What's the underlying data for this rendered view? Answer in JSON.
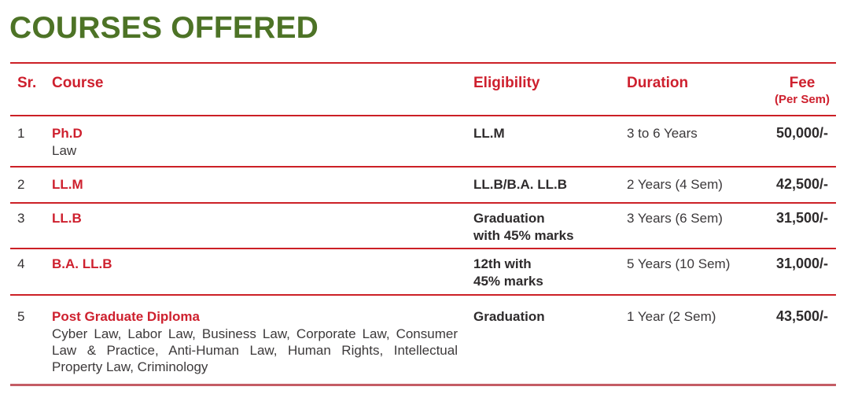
{
  "page": {
    "title": "COURSES OFFERED"
  },
  "colors": {
    "title_green": "#4d7326",
    "accent_red": "#ce202e",
    "rule_red": "#cc2026",
    "rule_bottom_rose": "#c45d65",
    "text_dark_bold": "#2e2b2c",
    "text_body": "#3c393a"
  },
  "table": {
    "headers": {
      "sr": "Sr.",
      "course": "Course",
      "eligibility": "Eligibility",
      "duration": "Duration",
      "fee": "Fee",
      "fee_sub": "(Per Sem)"
    },
    "rows": [
      {
        "sr": "1",
        "course": "Ph.D",
        "course_sub": "Law",
        "eligibility": "LL.M",
        "duration": "3 to 6 Years",
        "fee": "50,000/-"
      },
      {
        "sr": "2",
        "course": "LL.M",
        "course_sub": "",
        "eligibility": "LL.B/B.A. LL.B",
        "duration": "2 Years (4 Sem)",
        "fee": "42,500/-"
      },
      {
        "sr": "3",
        "course": "LL.B",
        "course_sub": "",
        "eligibility": "Graduation\nwith 45% marks",
        "duration": "3 Years (6 Sem)",
        "fee": "31,500/-"
      },
      {
        "sr": "4",
        "course": "B.A. LL.B",
        "course_sub": "",
        "eligibility": "12th with\n45% marks",
        "duration": "5 Years (10 Sem)",
        "fee": "31,000/-"
      },
      {
        "sr": "5",
        "course": "Post Graduate Diploma",
        "course_sub": "Cyber Law, Labor Law, Business Law, Corporate Law, Consumer Law & Practice, Anti-Human Law, Human Rights, Intellectual Property Law, Criminology",
        "eligibility": "Graduation",
        "duration": "1 Year (2 Sem)",
        "fee": "43,500/-"
      }
    ]
  }
}
